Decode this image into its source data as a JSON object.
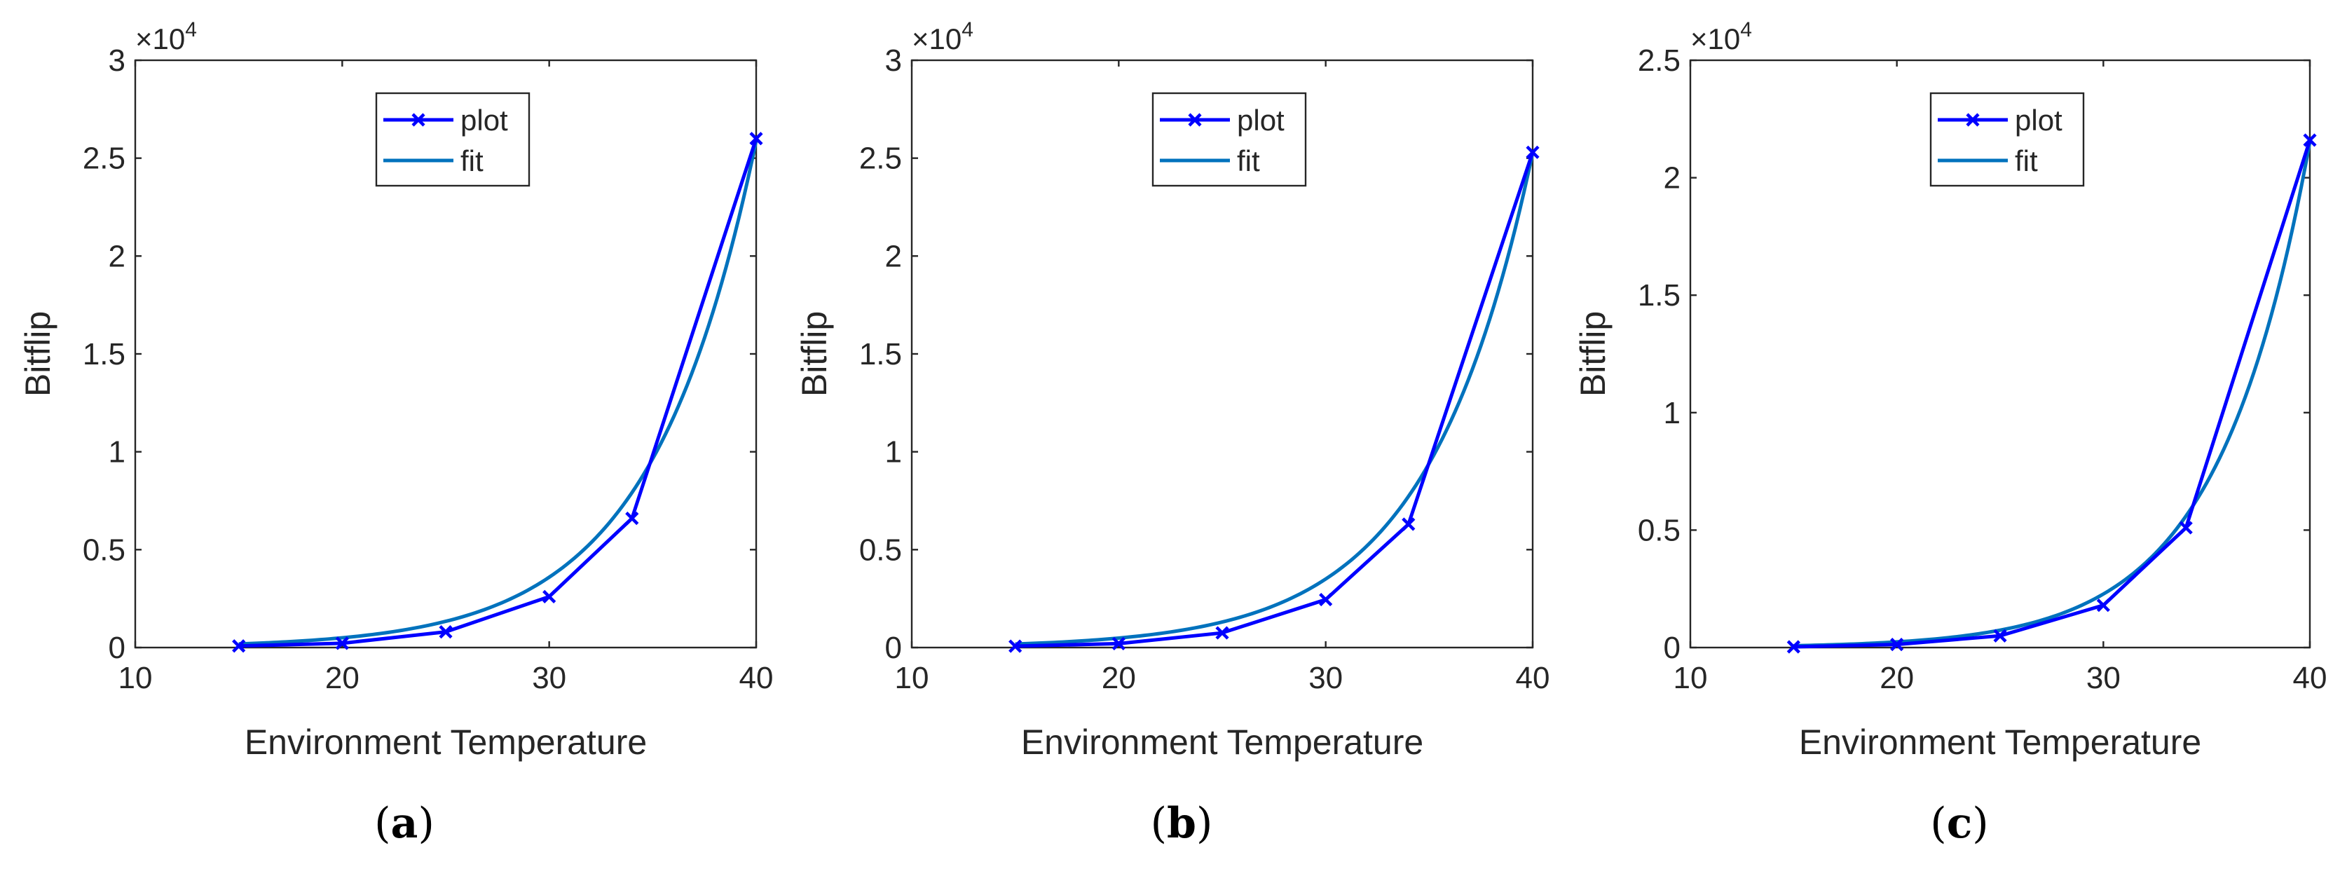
{
  "colors": {
    "plot": "#0000ff",
    "fit": "#0072bd",
    "axis": "#262626",
    "background": "#ffffff"
  },
  "chart_data": [
    {
      "type": "line",
      "caption": {
        "open": "(",
        "letter": "a",
        "close": ")"
      },
      "xlabel": "Environment Temperature",
      "ylabel": "Bitflip",
      "y_multiplier": {
        "base": "×10",
        "exponent": "4"
      },
      "xlim": [
        10,
        40
      ],
      "ylim": [
        0,
        30000
      ],
      "xticks": [
        10,
        20,
        30,
        40
      ],
      "yticks": [
        0,
        5000,
        10000,
        15000,
        20000,
        25000,
        30000
      ],
      "yticklabels": [
        "0",
        "0.5",
        "1",
        "1.5",
        "2",
        "2.5",
        "3"
      ],
      "legend": {
        "position": "top-center",
        "entries": [
          "plot",
          "fit"
        ]
      },
      "series": [
        {
          "name": "plot",
          "marker": "x",
          "x": [
            15,
            20,
            25,
            30,
            34,
            40
          ],
          "values": [
            80,
            220,
            800,
            2600,
            6600,
            26000
          ]
        },
        {
          "name": "fit",
          "marker": "none",
          "model": "exponential",
          "x_range": [
            15,
            40
          ],
          "a": 9.6,
          "b": 0.1975
        }
      ]
    },
    {
      "type": "line",
      "caption": {
        "open": "(",
        "letter": "b",
        "close": ")"
      },
      "xlabel": "Environment Temperature",
      "ylabel": "Bitflip",
      "y_multiplier": {
        "base": "×10",
        "exponent": "4"
      },
      "xlim": [
        10,
        40
      ],
      "ylim": [
        0,
        30000
      ],
      "xticks": [
        10,
        20,
        30,
        40
      ],
      "yticks": [
        0,
        5000,
        10000,
        15000,
        20000,
        25000,
        30000
      ],
      "yticklabels": [
        "0",
        "0.5",
        "1",
        "1.5",
        "2",
        "2.5",
        "3"
      ],
      "legend": {
        "position": "top-center",
        "entries": [
          "plot",
          "fit"
        ]
      },
      "series": [
        {
          "name": "plot",
          "marker": "x",
          "x": [
            15,
            20,
            25,
            30,
            34,
            40
          ],
          "values": [
            70,
            200,
            750,
            2450,
            6300,
            25300
          ]
        },
        {
          "name": "fit",
          "marker": "none",
          "model": "exponential",
          "x_range": [
            15,
            40
          ],
          "a": 9.3,
          "b": 0.1977
        }
      ]
    },
    {
      "type": "line",
      "caption": {
        "open": "(",
        "letter": "c",
        "close": ")"
      },
      "xlabel": "Environment Temperature",
      "ylabel": "Bitflip",
      "y_multiplier": {
        "base": "×10",
        "exponent": "4"
      },
      "xlim": [
        10,
        40
      ],
      "ylim": [
        0,
        25000
      ],
      "xticks": [
        10,
        20,
        30,
        40
      ],
      "yticks": [
        0,
        5000,
        10000,
        15000,
        20000,
        25000
      ],
      "yticklabels": [
        "0",
        "0.5",
        "1",
        "1.5",
        "2",
        "2.5"
      ],
      "legend": {
        "position": "top-center",
        "entries": [
          "plot",
          "fit"
        ]
      },
      "series": [
        {
          "name": "plot",
          "marker": "x",
          "x": [
            15,
            20,
            25,
            30,
            34,
            40
          ],
          "values": [
            30,
            130,
            500,
            1800,
            5100,
            21600
          ]
        },
        {
          "name": "fit",
          "marker": "none",
          "model": "exponential",
          "x_range": [
            15,
            40
          ],
          "a": 2.7,
          "b": 0.2246
        }
      ]
    }
  ]
}
